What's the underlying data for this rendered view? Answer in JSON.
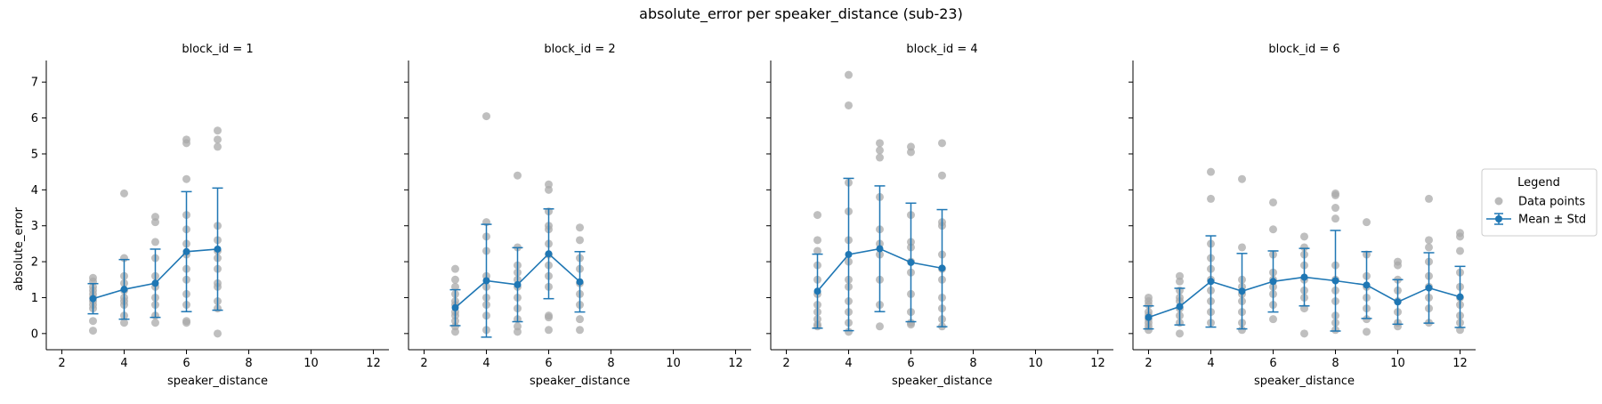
{
  "figure": {
    "suptitle": "absolute_error per speaker_distance (sub-23)",
    "ylabel": "absolute_error",
    "xlabel": "speaker_distance"
  },
  "legend": {
    "title": "Legend",
    "points_label": "Data points",
    "mean_label": "Mean ± Std",
    "placement": "center-right"
  },
  "colors": {
    "mean": "#1f77b4",
    "points": "#a9a9a9"
  },
  "chart_data": [
    {
      "type": "scatter",
      "title": "block_id = 1",
      "xlabel": "speaker_distance",
      "ylabel": "absolute_error",
      "xlim": [
        1.5,
        12.5
      ],
      "ylim": [
        -0.45,
        7.6
      ],
      "xticks": [
        2,
        4,
        6,
        8,
        10,
        12
      ],
      "yticks": [
        0,
        1,
        2,
        3,
        4,
        5,
        6,
        7
      ],
      "points": [
        [
          3,
          1.55
        ],
        [
          3,
          1.45
        ],
        [
          3,
          1.3
        ],
        [
          3,
          1.2
        ],
        [
          3,
          1.1
        ],
        [
          3,
          1.0
        ],
        [
          3,
          0.9
        ],
        [
          3,
          0.8
        ],
        [
          3,
          0.7
        ],
        [
          3,
          0.35
        ],
        [
          3,
          0.08
        ],
        [
          4,
          3.9
        ],
        [
          4,
          2.1
        ],
        [
          4,
          1.6
        ],
        [
          4,
          1.4
        ],
        [
          4,
          1.2
        ],
        [
          4,
          1.0
        ],
        [
          4,
          0.9
        ],
        [
          4,
          0.8
        ],
        [
          4,
          0.5
        ],
        [
          4,
          0.3
        ],
        [
          5,
          3.25
        ],
        [
          5,
          3.1
        ],
        [
          5,
          2.55
        ],
        [
          5,
          2.1
        ],
        [
          5,
          1.6
        ],
        [
          5,
          1.3
        ],
        [
          5,
          1.0
        ],
        [
          5,
          0.8
        ],
        [
          5,
          0.5
        ],
        [
          5,
          0.3
        ],
        [
          6,
          5.4
        ],
        [
          6,
          5.3
        ],
        [
          6,
          4.3
        ],
        [
          6,
          3.3
        ],
        [
          6,
          2.9
        ],
        [
          6,
          2.5
        ],
        [
          6,
          2.2
        ],
        [
          6,
          1.8
        ],
        [
          6,
          1.5
        ],
        [
          6,
          1.1
        ],
        [
          6,
          0.8
        ],
        [
          6,
          0.35
        ],
        [
          6,
          0.3
        ],
        [
          7,
          5.65
        ],
        [
          7,
          5.4
        ],
        [
          7,
          5.2
        ],
        [
          7,
          3.0
        ],
        [
          7,
          2.6
        ],
        [
          7,
          2.3
        ],
        [
          7,
          2.1
        ],
        [
          7,
          1.8
        ],
        [
          7,
          1.4
        ],
        [
          7,
          1.3
        ],
        [
          7,
          0.9
        ],
        [
          7,
          0.7
        ],
        [
          7,
          0.0
        ]
      ],
      "mean_std": [
        {
          "x": 3,
          "mean": 0.97,
          "std": 0.42
        },
        {
          "x": 4,
          "mean": 1.23,
          "std": 0.83
        },
        {
          "x": 5,
          "mean": 1.4,
          "std": 0.95
        },
        {
          "x": 6,
          "mean": 2.28,
          "std": 1.67
        },
        {
          "x": 7,
          "mean": 2.35,
          "std": 1.7
        }
      ]
    },
    {
      "type": "scatter",
      "title": "block_id = 2",
      "xlabel": "speaker_distance",
      "ylabel": "absolute_error",
      "xlim": [
        1.5,
        12.5
      ],
      "ylim": [
        -0.45,
        7.6
      ],
      "xticks": [
        2,
        4,
        6,
        8,
        10,
        12
      ],
      "yticks": [
        0,
        1,
        2,
        3,
        4,
        5,
        6,
        7
      ],
      "points": [
        [
          3,
          1.8
        ],
        [
          3,
          1.5
        ],
        [
          3,
          1.3
        ],
        [
          3,
          1.1
        ],
        [
          3,
          0.9
        ],
        [
          3,
          0.8
        ],
        [
          3,
          0.6
        ],
        [
          3,
          0.5
        ],
        [
          3,
          0.35
        ],
        [
          3,
          0.2
        ],
        [
          3,
          0.05
        ],
        [
          4,
          6.05
        ],
        [
          4,
          3.1
        ],
        [
          4,
          2.7
        ],
        [
          4,
          2.3
        ],
        [
          4,
          1.6
        ],
        [
          4,
          1.3
        ],
        [
          4,
          1.0
        ],
        [
          4,
          0.8
        ],
        [
          4,
          0.5
        ],
        [
          4,
          0.1
        ],
        [
          5,
          4.4
        ],
        [
          5,
          2.4
        ],
        [
          5,
          1.9
        ],
        [
          5,
          1.7
        ],
        [
          5,
          1.5
        ],
        [
          5,
          1.3
        ],
        [
          5,
          1.0
        ],
        [
          5,
          0.7
        ],
        [
          5,
          0.4
        ],
        [
          5,
          0.2
        ],
        [
          5,
          0.05
        ],
        [
          6,
          4.15
        ],
        [
          6,
          4.0
        ],
        [
          6,
          3.4
        ],
        [
          6,
          3.0
        ],
        [
          6,
          2.9
        ],
        [
          6,
          2.5
        ],
        [
          6,
          2.2
        ],
        [
          6,
          1.9
        ],
        [
          6,
          1.6
        ],
        [
          6,
          1.3
        ],
        [
          6,
          0.5
        ],
        [
          6,
          0.45
        ],
        [
          6,
          0.1
        ],
        [
          7,
          2.95
        ],
        [
          7,
          2.6
        ],
        [
          7,
          2.1
        ],
        [
          7,
          1.8
        ],
        [
          7,
          1.4
        ],
        [
          7,
          1.1
        ],
        [
          7,
          0.8
        ],
        [
          7,
          0.4
        ],
        [
          7,
          0.1
        ]
      ],
      "mean_std": [
        {
          "x": 3,
          "mean": 0.72,
          "std": 0.5
        },
        {
          "x": 4,
          "mean": 1.47,
          "std": 1.57
        },
        {
          "x": 5,
          "mean": 1.36,
          "std": 1.03
        },
        {
          "x": 6,
          "mean": 2.22,
          "std": 1.25
        },
        {
          "x": 7,
          "mean": 1.44,
          "std": 0.84
        }
      ]
    },
    {
      "type": "scatter",
      "title": "block_id = 4",
      "xlabel": "speaker_distance",
      "ylabel": "absolute_error",
      "xlim": [
        1.5,
        12.5
      ],
      "ylim": [
        -0.45,
        7.6
      ],
      "xticks": [
        2,
        4,
        6,
        8,
        10,
        12
      ],
      "yticks": [
        0,
        1,
        2,
        3,
        4,
        5,
        6,
        7
      ],
      "points": [
        [
          3,
          3.3
        ],
        [
          3,
          2.6
        ],
        [
          3,
          2.3
        ],
        [
          3,
          1.9
        ],
        [
          3,
          1.5
        ],
        [
          3,
          1.1
        ],
        [
          3,
          0.8
        ],
        [
          3,
          0.6
        ],
        [
          3,
          0.4
        ],
        [
          3,
          0.25
        ],
        [
          3,
          0.2
        ],
        [
          4,
          7.2
        ],
        [
          4,
          6.35
        ],
        [
          4,
          4.2
        ],
        [
          4,
          3.4
        ],
        [
          4,
          2.6
        ],
        [
          4,
          2.0
        ],
        [
          4,
          1.5
        ],
        [
          4,
          1.3
        ],
        [
          4,
          0.9
        ],
        [
          4,
          0.6
        ],
        [
          4,
          0.3
        ],
        [
          4,
          0.05
        ],
        [
          5,
          5.3
        ],
        [
          5,
          5.1
        ],
        [
          5,
          4.9
        ],
        [
          5,
          3.8
        ],
        [
          5,
          2.9
        ],
        [
          5,
          2.5
        ],
        [
          5,
          2.2
        ],
        [
          5,
          1.5
        ],
        [
          5,
          0.8
        ],
        [
          5,
          0.2
        ],
        [
          6,
          5.2
        ],
        [
          6,
          5.05
        ],
        [
          6,
          3.3
        ],
        [
          6,
          2.55
        ],
        [
          6,
          2.4
        ],
        [
          6,
          2.0
        ],
        [
          6,
          1.7
        ],
        [
          6,
          1.1
        ],
        [
          6,
          0.6
        ],
        [
          6,
          0.3
        ],
        [
          6,
          0.25
        ],
        [
          7,
          5.3
        ],
        [
          7,
          4.4
        ],
        [
          7,
          3.1
        ],
        [
          7,
          3.0
        ],
        [
          7,
          2.2
        ],
        [
          7,
          1.8
        ],
        [
          7,
          1.5
        ],
        [
          7,
          1.0
        ],
        [
          7,
          0.7
        ],
        [
          7,
          0.4
        ],
        [
          7,
          0.2
        ]
      ],
      "mean_std": [
        {
          "x": 3,
          "mean": 1.18,
          "std": 1.03
        },
        {
          "x": 4,
          "mean": 2.2,
          "std": 2.12
        },
        {
          "x": 5,
          "mean": 2.36,
          "std": 1.75
        },
        {
          "x": 6,
          "mean": 1.98,
          "std": 1.65
        },
        {
          "x": 7,
          "mean": 1.82,
          "std": 1.63
        }
      ]
    },
    {
      "type": "scatter",
      "title": "block_id = 6",
      "xlabel": "speaker_distance",
      "ylabel": "absolute_error",
      "xlim": [
        1.5,
        12.5
      ],
      "ylim": [
        -0.45,
        7.6
      ],
      "xticks": [
        2,
        4,
        6,
        8,
        10,
        12
      ],
      "yticks": [
        0,
        1,
        2,
        3,
        4,
        5,
        6,
        7
      ],
      "points": [
        [
          2,
          1.0
        ],
        [
          2,
          0.9
        ],
        [
          2,
          0.8
        ],
        [
          2,
          0.6
        ],
        [
          2,
          0.5
        ],
        [
          2,
          0.4
        ],
        [
          2,
          0.3
        ],
        [
          2,
          0.2
        ],
        [
          2,
          0.1
        ],
        [
          3,
          1.6
        ],
        [
          3,
          1.45
        ],
        [
          3,
          1.2
        ],
        [
          3,
          1.0
        ],
        [
          3,
          0.9
        ],
        [
          3,
          0.7
        ],
        [
          3,
          0.5
        ],
        [
          3,
          0.3
        ],
        [
          3,
          0.0
        ],
        [
          4,
          4.5
        ],
        [
          4,
          3.75
        ],
        [
          4,
          2.5
        ],
        [
          4,
          2.1
        ],
        [
          4,
          1.8
        ],
        [
          4,
          1.5
        ],
        [
          4,
          1.2
        ],
        [
          4,
          0.9
        ],
        [
          4,
          0.6
        ],
        [
          4,
          0.3
        ],
        [
          5,
          4.3
        ],
        [
          5,
          2.4
        ],
        [
          5,
          1.5
        ],
        [
          5,
          1.3
        ],
        [
          5,
          1.1
        ],
        [
          5,
          0.9
        ],
        [
          5,
          0.6
        ],
        [
          5,
          0.3
        ],
        [
          5,
          0.1
        ],
        [
          6,
          3.65
        ],
        [
          6,
          2.9
        ],
        [
          6,
          2.2
        ],
        [
          6,
          1.7
        ],
        [
          6,
          1.5
        ],
        [
          6,
          1.3
        ],
        [
          6,
          1.1
        ],
        [
          6,
          0.8
        ],
        [
          6,
          0.4
        ],
        [
          7,
          2.7
        ],
        [
          7,
          2.4
        ],
        [
          7,
          2.2
        ],
        [
          7,
          1.9
        ],
        [
          7,
          1.5
        ],
        [
          7,
          1.2
        ],
        [
          7,
          1.0
        ],
        [
          7,
          0.7
        ],
        [
          7,
          0.0
        ],
        [
          8,
          3.9
        ],
        [
          8,
          3.85
        ],
        [
          8,
          3.5
        ],
        [
          8,
          3.2
        ],
        [
          8,
          1.9
        ],
        [
          8,
          1.5
        ],
        [
          8,
          1.2
        ],
        [
          8,
          0.9
        ],
        [
          8,
          0.5
        ],
        [
          8,
          0.3
        ],
        [
          8,
          0.1
        ],
        [
          9,
          3.1
        ],
        [
          9,
          2.2
        ],
        [
          9,
          1.6
        ],
        [
          9,
          1.3
        ],
        [
          9,
          1.0
        ],
        [
          9,
          0.7
        ],
        [
          9,
          0.4
        ],
        [
          9,
          0.05
        ],
        [
          10,
          2.0
        ],
        [
          10,
          1.9
        ],
        [
          10,
          1.5
        ],
        [
          10,
          1.2
        ],
        [
          10,
          0.9
        ],
        [
          10,
          0.6
        ],
        [
          10,
          0.3
        ],
        [
          10,
          0.2
        ],
        [
          11,
          3.75
        ],
        [
          11,
          2.6
        ],
        [
          11,
          2.4
        ],
        [
          11,
          2.0
        ],
        [
          11,
          1.6
        ],
        [
          11,
          1.3
        ],
        [
          11,
          1.0
        ],
        [
          11,
          0.7
        ],
        [
          11,
          0.3
        ],
        [
          12,
          2.8
        ],
        [
          12,
          2.7
        ],
        [
          12,
          2.3
        ],
        [
          12,
          1.7
        ],
        [
          12,
          1.3
        ],
        [
          12,
          1.0
        ],
        [
          12,
          0.8
        ],
        [
          12,
          0.5
        ],
        [
          12,
          0.3
        ],
        [
          12,
          0.1
        ]
      ],
      "mean_std": [
        {
          "x": 2,
          "mean": 0.45,
          "std": 0.32
        },
        {
          "x": 3,
          "mean": 0.75,
          "std": 0.51
        },
        {
          "x": 4,
          "mean": 1.45,
          "std": 1.27
        },
        {
          "x": 5,
          "mean": 1.18,
          "std": 1.05
        },
        {
          "x": 6,
          "mean": 1.45,
          "std": 0.85
        },
        {
          "x": 7,
          "mean": 1.57,
          "std": 0.8
        },
        {
          "x": 8,
          "mean": 1.47,
          "std": 1.4
        },
        {
          "x": 9,
          "mean": 1.35,
          "std": 0.93
        },
        {
          "x": 10,
          "mean": 0.88,
          "std": 0.62
        },
        {
          "x": 11,
          "mean": 1.27,
          "std": 0.98
        },
        {
          "x": 12,
          "mean": 1.02,
          "std": 0.85
        }
      ]
    }
  ]
}
